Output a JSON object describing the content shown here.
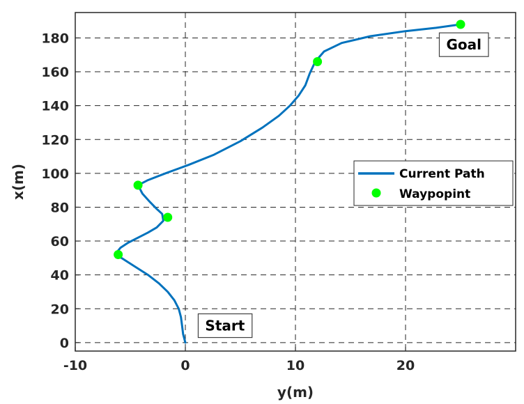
{
  "chart_data": {
    "type": "line",
    "xlabel": "y(m)",
    "ylabel": "x(m)",
    "xlim": [
      -10,
      30
    ],
    "ylim": [
      -5,
      195
    ],
    "xticks": [
      -10,
      0,
      10,
      20
    ],
    "yticks": [
      0,
      20,
      40,
      60,
      80,
      100,
      120,
      140,
      160,
      180
    ],
    "grid": true,
    "grid_style": "dashed",
    "legend_position": "right-middle",
    "series": [
      {
        "name": "Current Path",
        "color": "#0072BD",
        "style": "line",
        "x": [
          0,
          -0.2,
          -0.3,
          -0.4,
          -0.6,
          -1.0,
          -1.6,
          -2.4,
          -3.4,
          -4.6,
          -5.8,
          -6.4,
          -5.9,
          -5.2,
          -4.3,
          -3.4,
          -2.6,
          -2.0,
          -2.1,
          -2.6,
          -3.2,
          -3.9,
          -4.3,
          -3.4,
          -1.8,
          0.3,
          2.6,
          5.0,
          7.0,
          8.5,
          9.5,
          10.3,
          10.9,
          11.3,
          11.8,
          12.6,
          14.2,
          16.8,
          20.0,
          22.8,
          25.0
        ],
        "y": [
          0,
          5,
          10,
          15,
          20,
          25,
          30,
          35,
          40,
          45,
          50,
          52,
          56,
          59,
          62,
          65,
          68,
          72,
          76,
          79,
          83,
          88,
          93,
          96,
          100,
          105,
          111,
          119,
          127,
          134,
          140,
          146,
          152,
          159,
          166,
          172,
          177,
          181,
          184,
          186,
          188
        ]
      },
      {
        "name": "Waypopint",
        "color": "#00FF00",
        "style": "marker",
        "x": [
          -6.1,
          -1.6,
          -4.3,
          12.0,
          25.0
        ],
        "y": [
          52,
          74,
          93,
          166,
          188
        ]
      }
    ],
    "annotations": [
      {
        "text": "Start",
        "x": 3.6,
        "y": 10
      },
      {
        "text": "Goal",
        "x": 25.3,
        "y": 176
      }
    ]
  }
}
